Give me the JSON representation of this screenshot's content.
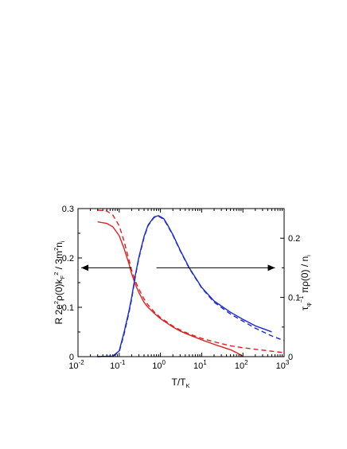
{
  "chart_data": {
    "type": "line",
    "xlabel": "T/T_K",
    "xscale": "log",
    "xlim": [
      0.01,
      1000
    ],
    "x_ticks": [
      {
        "base": "10",
        "exp": "-2"
      },
      {
        "base": "10",
        "exp": "-1"
      },
      {
        "base": "10",
        "exp": "0"
      },
      {
        "base": "10",
        "exp": "1"
      },
      {
        "base": "10",
        "exp": "2"
      },
      {
        "base": "10",
        "exp": "3"
      }
    ],
    "left_axis": {
      "label": "R 2e^2ρ(0)k_F^2 / 3m^2n_i",
      "ylim": [
        0,
        0.3
      ],
      "ticks": [
        "0",
        "0.1",
        "0.2",
        "0.3"
      ]
    },
    "right_axis": {
      "label": "τ_φ^-1 πρ(0) / n_i",
      "ylim": [
        0,
        0.25
      ],
      "ticks": [
        "0",
        "0.1",
        "0.2"
      ]
    },
    "grid": false,
    "colors": {
      "resistance": "#e02020",
      "dephasing": "#1a28d8",
      "axes": "#000000"
    },
    "arrows": [
      {
        "direction": "left",
        "points_to": "left axis",
        "y_left": 0.18,
        "x_from": 0.2,
        "x_to": 0.012
      },
      {
        "direction": "right",
        "points_to": "right axis",
        "y_left": 0.18,
        "x_from": 0.8,
        "x_to": 600
      }
    ],
    "series": [
      {
        "axis": "left",
        "color": "#e02020",
        "style": "solid",
        "x": [
          0.03,
          0.05,
          0.07,
          0.1,
          0.13,
          0.17,
          0.2,
          0.25,
          0.3,
          0.4,
          0.5,
          0.7,
          1,
          2,
          3,
          5,
          10,
          20,
          30,
          50,
          70,
          90,
          100
        ],
        "y": [
          0.273,
          0.27,
          0.263,
          0.245,
          0.22,
          0.19,
          0.168,
          0.145,
          0.13,
          0.11,
          0.1,
          0.088,
          0.077,
          0.06,
          0.052,
          0.044,
          0.034,
          0.025,
          0.02,
          0.014,
          0.008,
          0.003,
          0.0
        ]
      },
      {
        "axis": "left",
        "color": "#e02020",
        "style": "dashed",
        "x": [
          0.03,
          0.05,
          0.07,
          0.1,
          0.13,
          0.17,
          0.2,
          0.25,
          0.3,
          0.4,
          0.5,
          0.7,
          1,
          2,
          3,
          5,
          10,
          20,
          50,
          100,
          200,
          500,
          1000
        ],
        "y": [
          0.297,
          0.295,
          0.287,
          0.265,
          0.235,
          0.198,
          0.175,
          0.152,
          0.137,
          0.117,
          0.105,
          0.091,
          0.079,
          0.062,
          0.054,
          0.046,
          0.037,
          0.03,
          0.022,
          0.018,
          0.015,
          0.011,
          0.008
        ]
      },
      {
        "axis": "right",
        "color": "#1a28d8",
        "style": "solid",
        "x": [
          0.03,
          0.07,
          0.1,
          0.13,
          0.17,
          0.2,
          0.25,
          0.3,
          0.4,
          0.5,
          0.7,
          0.9,
          1.2,
          1.5,
          2,
          3,
          5,
          10,
          20,
          50,
          100,
          200,
          500
        ],
        "y": [
          0.0,
          0.001,
          0.01,
          0.04,
          0.075,
          0.1,
          0.14,
          0.168,
          0.203,
          0.222,
          0.236,
          0.238,
          0.233,
          0.222,
          0.206,
          0.18,
          0.15,
          0.117,
          0.094,
          0.075,
          0.063,
          0.052,
          0.042
        ]
      },
      {
        "axis": "right",
        "color": "#1a28d8",
        "style": "dashed",
        "x": [
          0.03,
          0.07,
          0.1,
          0.13,
          0.17,
          0.2,
          0.25,
          0.3,
          0.4,
          0.5,
          0.7,
          0.9,
          1.2,
          1.5,
          2,
          3,
          5,
          10,
          20,
          50,
          100,
          200,
          500,
          1000
        ],
        "y": [
          0.0,
          0.001,
          0.008,
          0.037,
          0.072,
          0.097,
          0.138,
          0.166,
          0.201,
          0.221,
          0.235,
          0.237,
          0.232,
          0.221,
          0.205,
          0.179,
          0.149,
          0.116,
          0.092,
          0.072,
          0.06,
          0.048,
          0.035,
          0.027
        ]
      }
    ]
  }
}
